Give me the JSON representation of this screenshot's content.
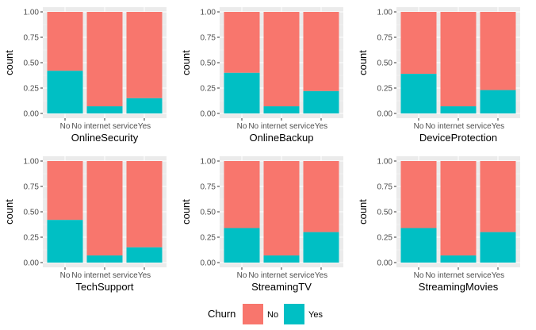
{
  "chart_data": {
    "type": "bar",
    "stacked": "fill",
    "grid": true,
    "ylabel": "count",
    "yticks": [
      "0.00",
      "0.25",
      "0.50",
      "0.75",
      "1.00"
    ],
    "ylim": [
      0,
      1
    ],
    "categories": [
      "No",
      "No internet service",
      "Yes"
    ],
    "legend": {
      "title": "Churn",
      "placement": "bottom",
      "entries": [
        {
          "name": "No",
          "color": "#F8766D"
        },
        {
          "name": "Yes",
          "color": "#00BFC4"
        }
      ]
    },
    "panels": [
      {
        "xlabel": "OnlineSecurity",
        "yes": [
          0.42,
          0.07,
          0.15
        ]
      },
      {
        "xlabel": "OnlineBackup",
        "yes": [
          0.4,
          0.07,
          0.22
        ]
      },
      {
        "xlabel": "DeviceProtection",
        "yes": [
          0.39,
          0.07,
          0.23
        ]
      },
      {
        "xlabel": "TechSupport",
        "yes": [
          0.42,
          0.07,
          0.15
        ]
      },
      {
        "xlabel": "StreamingTV",
        "yes": [
          0.34,
          0.07,
          0.3
        ]
      },
      {
        "xlabel": "StreamingMovies",
        "yes": [
          0.34,
          0.07,
          0.3
        ]
      }
    ]
  }
}
